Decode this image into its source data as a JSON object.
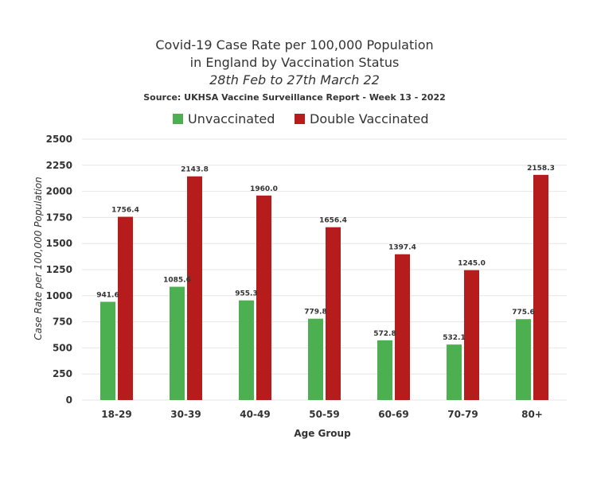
{
  "chart_data": {
    "type": "bar",
    "title_lines": [
      "Covid-19 Case Rate per 100,000 Population",
      "in England by Vaccination Status"
    ],
    "subtitle": "28th Feb to 27th March 22",
    "source": "Source: UKHSA Vaccine Surveillance Report - Week 13 - 2022",
    "xlabel": "Age Group",
    "ylabel": "Case Rate per 100,000 Population",
    "categories": [
      "18-29",
      "30-39",
      "40-49",
      "50-59",
      "60-69",
      "70-79",
      "80+"
    ],
    "series": [
      {
        "name": "Unvaccinated",
        "color": "#4caf50",
        "values": [
          941.6,
          1085.6,
          955.3,
          779.8,
          572.8,
          532.1,
          775.6
        ],
        "labels": [
          "941.6",
          "1085.6",
          "955.3",
          "779.8",
          "572.8",
          "532.1",
          "775.6"
        ]
      },
      {
        "name": "Double Vaccinated",
        "color": "#b71c1c",
        "values": [
          1756.4,
          2143.8,
          1960.0,
          1656.4,
          1397.4,
          1245.0,
          2158.3
        ],
        "labels": [
          "1756.4",
          "2143.8",
          "1960.0",
          "1656.4",
          "1397.4",
          "1245.0",
          "2158.3"
        ]
      }
    ],
    "ylim": [
      0,
      2500
    ],
    "yticks": [
      0,
      250,
      500,
      750,
      1000,
      1250,
      1500,
      1750,
      2000,
      2250,
      2500
    ],
    "grid": true,
    "legend_position": "top-center"
  }
}
